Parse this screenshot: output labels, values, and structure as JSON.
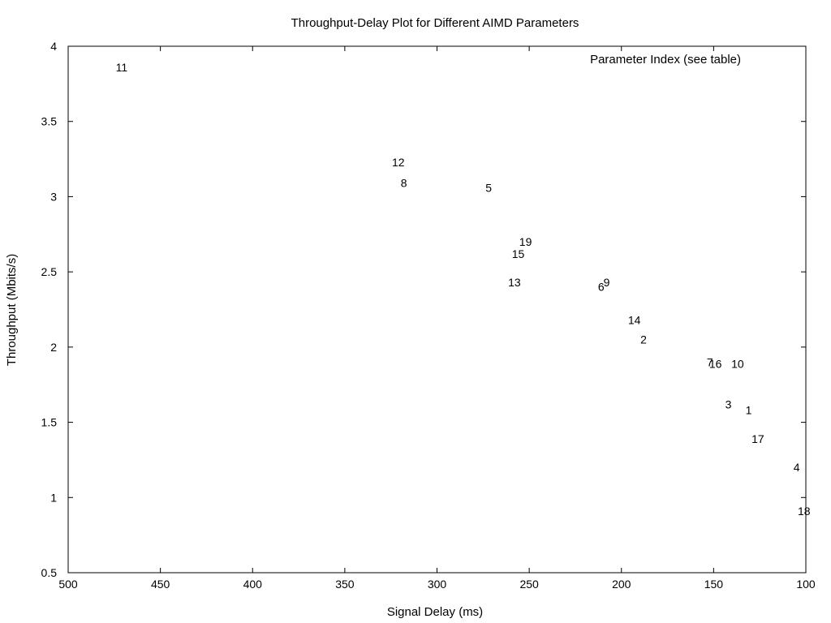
{
  "chart_data": {
    "type": "scatter",
    "title": "Throughput-Delay Plot for Different AIMD Parameters",
    "xlabel": "Signal Delay (ms)",
    "ylabel": "Throughput (Mbits/s)",
    "xlim": [
      500,
      100
    ],
    "ylim": [
      0.5,
      4
    ],
    "x_reversed": true,
    "xticks": [
      500,
      450,
      400,
      350,
      300,
      250,
      200,
      150,
      100
    ],
    "yticks": [
      0.5,
      1,
      1.5,
      2,
      2.5,
      3,
      3.5,
      4
    ],
    "ytick_labels": [
      "0.5",
      "1",
      "1.5",
      "2",
      "2.5",
      "3",
      "3.5",
      "4"
    ],
    "legend": {
      "text": "Parameter Index (see table)",
      "placement": "top-right"
    },
    "grid": false,
    "series": [
      {
        "marker": "text-label",
        "points": [
          {
            "label": "1",
            "x": 131,
            "y": 1.58
          },
          {
            "label": "2",
            "x": 188,
            "y": 2.05
          },
          {
            "label": "3",
            "x": 142,
            "y": 1.62
          },
          {
            "label": "4",
            "x": 105,
            "y": 1.2
          },
          {
            "label": "5",
            "x": 272,
            "y": 3.06
          },
          {
            "label": "6",
            "x": 211,
            "y": 2.4
          },
          {
            "label": "7",
            "x": 152,
            "y": 1.9
          },
          {
            "label": "8",
            "x": 318,
            "y": 3.09
          },
          {
            "label": "9",
            "x": 208,
            "y": 2.43
          },
          {
            "label": "10",
            "x": 137,
            "y": 1.89
          },
          {
            "label": "11",
            "x": 471,
            "y": 3.86
          },
          {
            "label": "12",
            "x": 321,
            "y": 3.23
          },
          {
            "label": "13",
            "x": 258,
            "y": 2.43
          },
          {
            "label": "14",
            "x": 193,
            "y": 2.18
          },
          {
            "label": "15",
            "x": 256,
            "y": 2.62
          },
          {
            "label": "16",
            "x": 149,
            "y": 1.89
          },
          {
            "label": "17",
            "x": 126,
            "y": 1.39
          },
          {
            "label": "18",
            "x": 101,
            "y": 0.91
          },
          {
            "label": "19",
            "x": 252,
            "y": 2.7
          }
        ]
      }
    ]
  }
}
